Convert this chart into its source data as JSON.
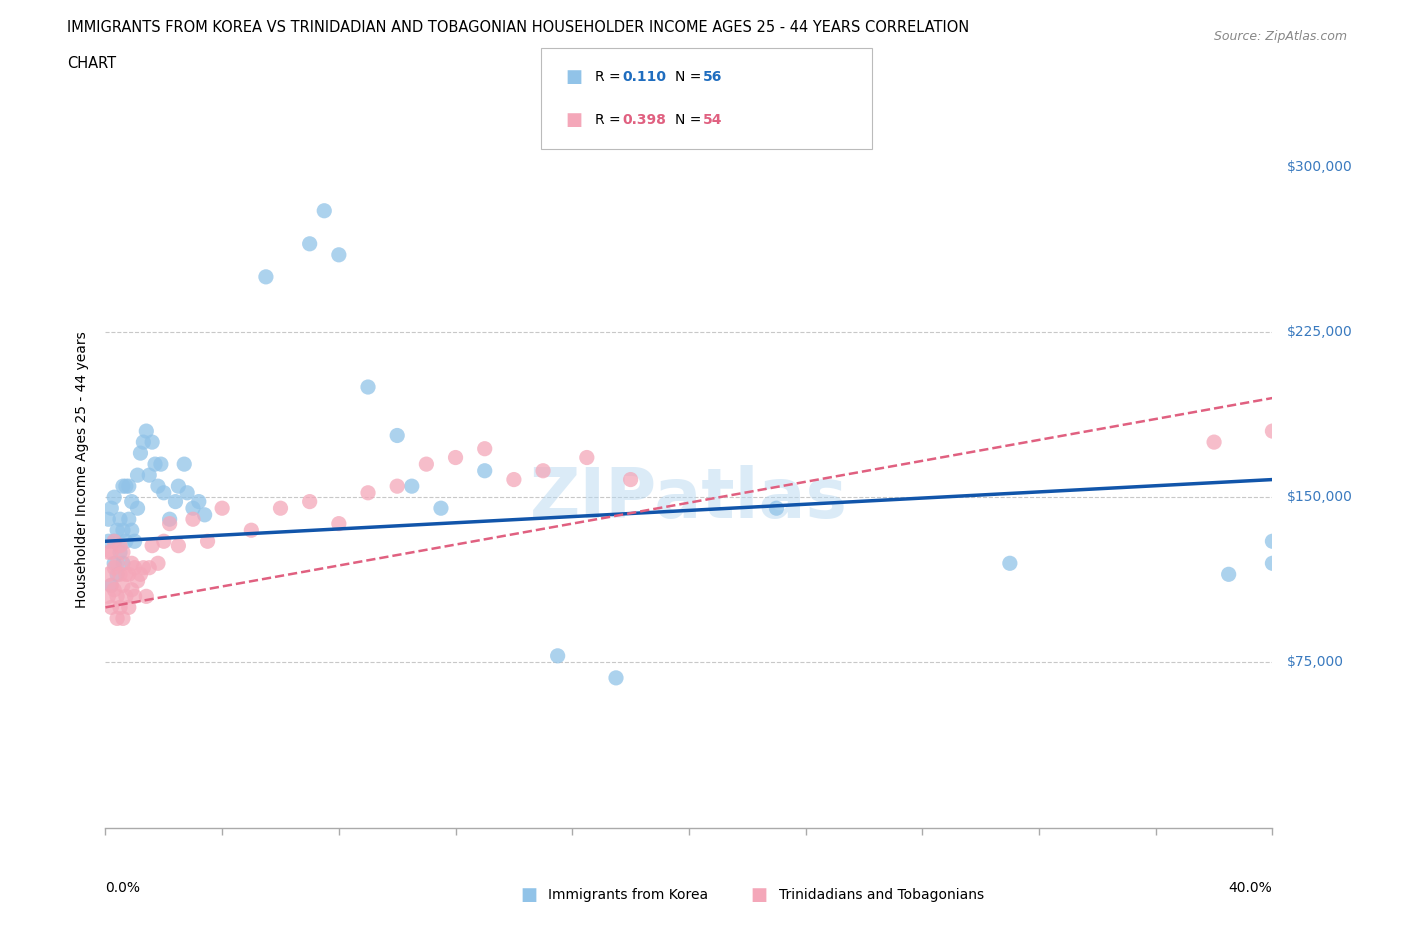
{
  "title_line1": "IMMIGRANTS FROM KOREA VS TRINIDADIAN AND TOBAGONIAN HOUSEHOLDER INCOME AGES 25 - 44 YEARS CORRELATION",
  "title_line2": "CHART",
  "source": "Source: ZipAtlas.com",
  "ylabel": "Householder Income Ages 25 - 44 years",
  "xmin": 0.0,
  "xmax": 0.4,
  "ymin": 0,
  "ymax": 325000,
  "korea_R": 0.11,
  "korea_N": 56,
  "tt_R": 0.398,
  "tt_N": 54,
  "korea_color": "#91c3e8",
  "tt_color": "#f4a7b9",
  "korea_line_color": "#1155aa",
  "tt_line_color": "#e06080",
  "gridline_y": [
    75000,
    150000,
    225000
  ],
  "ytick_vals": [
    75000,
    150000,
    225000,
    300000
  ],
  "ytick_right_labels": [
    "$75,000",
    "$150,000",
    "$225,000",
    "$300,000"
  ],
  "korea_points_x": [
    0.001,
    0.001,
    0.002,
    0.002,
    0.003,
    0.003,
    0.003,
    0.004,
    0.004,
    0.005,
    0.005,
    0.006,
    0.006,
    0.006,
    0.007,
    0.007,
    0.008,
    0.008,
    0.009,
    0.009,
    0.01,
    0.011,
    0.011,
    0.012,
    0.013,
    0.014,
    0.015,
    0.016,
    0.017,
    0.018,
    0.019,
    0.02,
    0.022,
    0.024,
    0.025,
    0.027,
    0.028,
    0.03,
    0.032,
    0.034,
    0.055,
    0.07,
    0.075,
    0.08,
    0.09,
    0.1,
    0.105,
    0.115,
    0.13,
    0.155,
    0.175,
    0.23,
    0.31,
    0.385,
    0.4,
    0.4
  ],
  "korea_points_y": [
    130000,
    140000,
    110000,
    145000,
    120000,
    130000,
    150000,
    115000,
    135000,
    125000,
    140000,
    120000,
    135000,
    155000,
    130000,
    155000,
    140000,
    155000,
    135000,
    148000,
    130000,
    145000,
    160000,
    170000,
    175000,
    180000,
    160000,
    175000,
    165000,
    155000,
    165000,
    152000,
    140000,
    148000,
    155000,
    165000,
    152000,
    145000,
    148000,
    142000,
    250000,
    265000,
    280000,
    260000,
    200000,
    178000,
    155000,
    145000,
    162000,
    78000,
    68000,
    145000,
    120000,
    115000,
    120000,
    130000
  ],
  "tt_points_x": [
    0.001,
    0.001,
    0.001,
    0.002,
    0.002,
    0.002,
    0.003,
    0.003,
    0.003,
    0.004,
    0.004,
    0.004,
    0.005,
    0.005,
    0.005,
    0.006,
    0.006,
    0.006,
    0.007,
    0.007,
    0.008,
    0.008,
    0.009,
    0.009,
    0.01,
    0.01,
    0.011,
    0.012,
    0.013,
    0.014,
    0.015,
    0.016,
    0.018,
    0.02,
    0.022,
    0.025,
    0.03,
    0.035,
    0.04,
    0.05,
    0.06,
    0.07,
    0.08,
    0.09,
    0.1,
    0.11,
    0.12,
    0.13,
    0.14,
    0.15,
    0.165,
    0.18,
    0.38,
    0.4
  ],
  "tt_points_y": [
    115000,
    125000,
    105000,
    110000,
    125000,
    100000,
    118000,
    108000,
    130000,
    105000,
    120000,
    95000,
    115000,
    128000,
    100000,
    110000,
    125000,
    95000,
    115000,
    105000,
    100000,
    115000,
    108000,
    120000,
    105000,
    118000,
    112000,
    115000,
    118000,
    105000,
    118000,
    128000,
    120000,
    130000,
    138000,
    128000,
    140000,
    130000,
    145000,
    135000,
    145000,
    148000,
    138000,
    152000,
    155000,
    165000,
    168000,
    172000,
    158000,
    162000,
    168000,
    158000,
    175000,
    180000
  ]
}
